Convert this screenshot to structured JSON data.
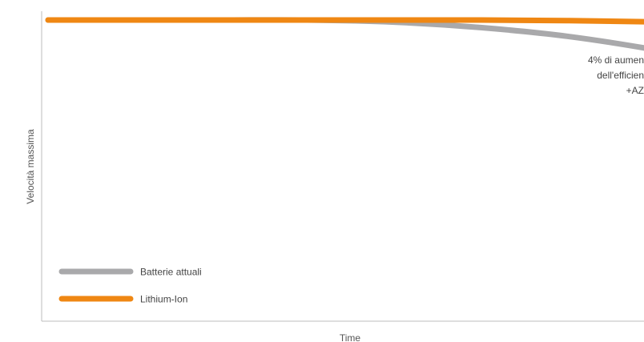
{
  "chart_data": {
    "type": "line",
    "title": "",
    "xlabel": "Time",
    "ylabel": "Velocità massima",
    "x": [
      0,
      10,
      20,
      30,
      40,
      50,
      60,
      70,
      80,
      90,
      100
    ],
    "xlim": [
      0,
      100
    ],
    "ylim": [
      0,
      100
    ],
    "grid": false,
    "legend_position": "bottom-left",
    "series": [
      {
        "name": "Batterie attuali",
        "color": "#a9a9ab",
        "values": [
          100,
          100,
          100,
          100,
          99.3,
          97.5,
          94.6,
          90.2,
          84.7,
          78.5,
          71.5
        ]
      },
      {
        "name": "Lithium-Ion",
        "color": "#ef8713",
        "values": [
          100,
          100,
          100,
          100,
          100,
          100,
          99.8,
          99.4,
          98.6,
          97.5,
          95.6
        ]
      }
    ],
    "annotation": {
      "lines": [
        "4% di aumen",
        "dell'efficien",
        "+AZ"
      ]
    }
  }
}
